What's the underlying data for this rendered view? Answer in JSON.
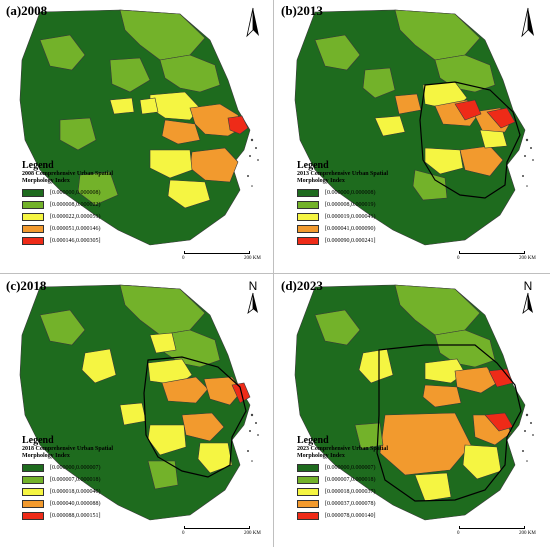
{
  "colors": {
    "class1": "#1e6b1e",
    "class2": "#73b22a",
    "class3": "#f5f542",
    "class4": "#f29a2e",
    "class5": "#ee2b18",
    "boundary": "#3a3a3a",
    "bold_boundary": "#000000"
  },
  "north_label": "N",
  "scale": {
    "zero": "0",
    "km": "200 KM"
  },
  "panels": [
    {
      "title": "(a)2008",
      "legend_heading": "Legend",
      "legend_subtitle": "2008 Comprehensive Urban Spatial Morphology Index",
      "classes": [
        "[0.000000,0.000008)",
        "[0.000008,0.000022)",
        "[0.000022,0.000051)",
        "[0.000051,0.000146)",
        "[0.000146,0.000305]"
      ]
    },
    {
      "title": "(b)2013",
      "legend_heading": "Legend",
      "legend_subtitle": "2013 Comprehensive Urban Spatial Morphology Index",
      "classes": [
        "[0.000000,0.000008)",
        "[0.000008,0.000019)",
        "[0.000019,0.000041)",
        "[0.000041,0.000090)",
        "[0.000090,0.000241]"
      ]
    },
    {
      "title": "(c)2018",
      "legend_heading": "Legend",
      "legend_subtitle": "2018 Comprehensive Urban Spatial Morphology Index",
      "classes": [
        "[0.000000,0.000007)",
        "[0.000007,0.000018)",
        "[0.000018,0.000040)",
        "[0.000040,0.000088)",
        "[0.000088,0.000151]"
      ]
    },
    {
      "title": "(d)2023",
      "legend_heading": "Legend",
      "legend_subtitle": "2023 Comprehensive Urban Spatial Morphology Index",
      "classes": [
        "[0.000000,0.000007)",
        "[0.000007,0.000018)",
        "[0.000018,0.000037)",
        "[0.000037,0.000078)",
        "[0.000078,0.000140]"
      ]
    }
  ]
}
